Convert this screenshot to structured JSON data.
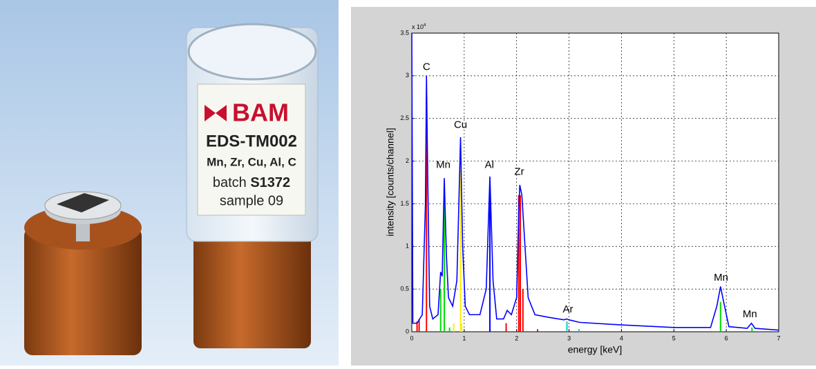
{
  "photo": {
    "logo": "BAM",
    "label_lines": [
      "EDS-TM002",
      "Mn, Zr, Cu, Al, C"
    ],
    "batch_prefix": "batch",
    "batch": "S1372",
    "sample": "sample 09"
  },
  "chart_data": {
    "type": "line",
    "x_label": "energy [keV]",
    "y_label": "intensity [counts/channel]",
    "y_multiplier": {
      "base": "x 10",
      "exponent": "4"
    },
    "xlim": [
      0,
      7
    ],
    "ylim": [
      0,
      3.5
    ],
    "xticks": [
      0,
      1,
      2,
      3,
      4,
      5,
      6,
      7
    ],
    "yticks": [
      0,
      0.5,
      1,
      1.5,
      2,
      2.5,
      3,
      3.5
    ],
    "grid": true,
    "series": [
      {
        "color": "#0000ff",
        "style": "line",
        "x": [
          0,
          0.02,
          0.1,
          0.2,
          0.26,
          0.28,
          0.3,
          0.34,
          0.4,
          0.5,
          0.55,
          0.58,
          0.62,
          0.66,
          0.7,
          0.78,
          0.86,
          0.93,
          0.97,
          1.02,
          1.1,
          1.3,
          1.42,
          1.49,
          1.55,
          1.62,
          1.75,
          1.82,
          1.9,
          2.0,
          2.04,
          2.06,
          2.1,
          2.16,
          2.22,
          2.35,
          2.6,
          2.9,
          2.96,
          3.0,
          3.2,
          4,
          5,
          5.7,
          5.82,
          5.89,
          5.95,
          6.05,
          6.4,
          6.48,
          6.55,
          7
        ],
        "values": [
          3.5,
          0.1,
          0.1,
          0.2,
          1.5,
          3.0,
          2.0,
          0.3,
          0.15,
          0.2,
          0.7,
          0.65,
          1.8,
          0.9,
          0.4,
          0.3,
          0.6,
          2.28,
          1.0,
          0.3,
          0.2,
          0.2,
          0.5,
          1.82,
          0.6,
          0.15,
          0.15,
          0.25,
          0.2,
          0.4,
          1.4,
          1.72,
          1.6,
          1.0,
          0.4,
          0.2,
          0.17,
          0.14,
          0.15,
          0.14,
          0.11,
          0.08,
          0.05,
          0.05,
          0.3,
          0.53,
          0.35,
          0.06,
          0.04,
          0.1,
          0.04,
          0.02
        ]
      },
      {
        "color": "#ff0000",
        "style": "stem",
        "x": [
          0.1,
          0.14,
          0.28,
          1.8,
          2.04,
          2.07,
          2.12,
          2.4
        ],
        "values": [
          0.12,
          0.15,
          2.75,
          0.1,
          1.6,
          1.6,
          0.5,
          0.03
        ]
      },
      {
        "color": "#00dd00",
        "style": "stem",
        "x": [
          0.55,
          0.62,
          0.72,
          5.89,
          6.49
        ],
        "values": [
          0.5,
          1.55,
          0.05,
          0.35,
          0.05
        ]
      },
      {
        "color": "#ffee00",
        "style": "stem",
        "x": [
          0.8,
          0.93,
          0.95
        ],
        "values": [
          0.1,
          1.9,
          0.1
        ]
      },
      {
        "color": "#00cccc",
        "style": "stem",
        "x": [
          2.96,
          3.19
        ],
        "values": [
          0.12,
          0.03
        ]
      },
      {
        "color": "#0000ff",
        "style": "stem",
        "x": [
          1.49
        ],
        "values": [
          1.7
        ]
      }
    ],
    "annotations": [
      {
        "text": "C",
        "x": 0.28,
        "y": 3.1
      },
      {
        "text": "Mn",
        "x": 0.6,
        "y": 1.95
      },
      {
        "text": "Cu",
        "x": 0.93,
        "y": 2.42
      },
      {
        "text": "Al",
        "x": 1.48,
        "y": 1.95
      },
      {
        "text": "Zr",
        "x": 2.05,
        "y": 1.87
      },
      {
        "text": "Ar",
        "x": 2.98,
        "y": 0.26
      },
      {
        "text": "Mn",
        "x": 5.9,
        "y": 0.63
      },
      {
        "text": "Mn",
        "x": 6.45,
        "y": 0.2
      }
    ]
  }
}
